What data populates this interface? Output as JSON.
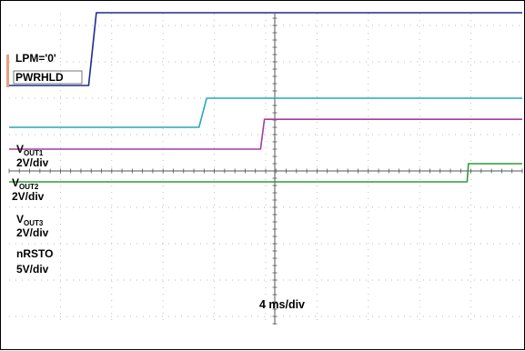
{
  "chart_data": {
    "type": "line",
    "title": "",
    "xlabel": "4 ms/div",
    "ylabel": "",
    "grid": true,
    "x_unit": "ms",
    "x_range": [
      0,
      40
    ],
    "divisions": {
      "horizontal": 10,
      "vertical": 8
    },
    "annotations": [
      "LPM='0'",
      "PWRHLD"
    ],
    "series": [
      {
        "key": "lpm",
        "name": "LPM='0'",
        "label_main": "LPM='0'",
        "label_sub": "",
        "scale": "",
        "color": "#7fa8a8",
        "baseline_div": 7.05,
        "high_div": 7.05,
        "x": [
          0,
          40
        ],
        "levels": [
          0,
          0
        ]
      },
      {
        "key": "pwrhld",
        "name": "PWRHLD",
        "label_main": "PWRHLD",
        "label_sub": "",
        "scale": "",
        "color": "#8fa8c8",
        "baseline_div": 6.9,
        "high_div": 6.9,
        "x": [
          0,
          40
        ],
        "levels": [
          0,
          0
        ]
      },
      {
        "key": "vout1",
        "name": "VOUT1",
        "label_main": "V",
        "label_sub": "OUT1",
        "scale": "2V/div",
        "color": "#1f2d8c",
        "baseline_div": 2.35,
        "high_div": 4.35,
        "x": [
          0,
          6.2,
          6.8,
          40
        ],
        "levels": [
          0,
          0,
          1,
          1
        ]
      },
      {
        "key": "vout2",
        "name": "VOUT2",
        "label_main": "V",
        "label_sub": "OUT2",
        "scale": "2V/div",
        "color": "#27a9b4",
        "baseline_div": 1.2,
        "high_div": 2.0,
        "x": [
          0,
          14.8,
          15.4,
          40
        ],
        "levels": [
          0,
          0,
          1,
          1
        ]
      },
      {
        "key": "vout3",
        "name": "VOUT3",
        "label_main": "V",
        "label_sub": "OUT3",
        "scale": "2V/div",
        "color": "#a53ca0",
        "baseline_div": 0.6,
        "high_div": 1.42,
        "x": [
          0,
          19.6,
          19.9,
          40
        ],
        "levels": [
          0,
          0,
          1,
          1
        ]
      },
      {
        "key": "nrsto",
        "name": "nRSTO",
        "label_main": "nRSTO",
        "label_sub": "",
        "scale": "5V/div",
        "color": "#2e9a3a",
        "baseline_div": -0.3,
        "high_div": 0.2,
        "x": [
          0,
          35.7,
          35.8,
          40
        ],
        "levels": [
          0,
          0,
          1,
          1
        ]
      }
    ]
  }
}
